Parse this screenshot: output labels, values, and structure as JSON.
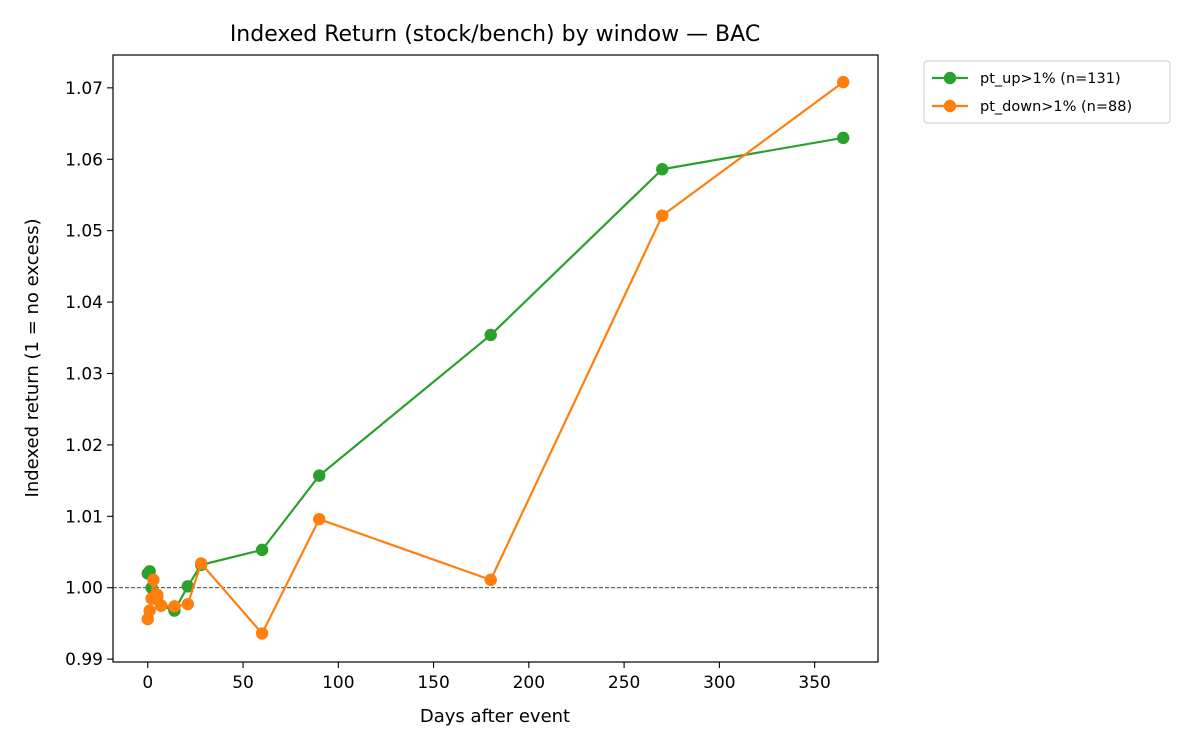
{
  "chart_data": {
    "type": "line",
    "title": "Indexed Return (stock/bench) by window — BAC",
    "xlabel": "Days after event",
    "ylabel": "Indexed return (1 = no excess)",
    "xlim": [
      -18.25,
      383.25
    ],
    "ylim": [
      0.9896,
      1.0746
    ],
    "xticks": [
      0,
      50,
      100,
      150,
      200,
      250,
      300,
      350
    ],
    "yticks": [
      0.99,
      1.0,
      1.01,
      1.02,
      1.03,
      1.04,
      1.05,
      1.06,
      1.07
    ],
    "ytick_labels": [
      "0.99",
      "1.00",
      "1.01",
      "1.02",
      "1.03",
      "1.04",
      "1.05",
      "1.06",
      "1.07"
    ],
    "reference_line": {
      "y": 1.0,
      "style": "dashed",
      "color": "#000000"
    },
    "grid": false,
    "legend_position": "outside-top-right",
    "series": [
      {
        "name": "pt_up>1% (n=131)",
        "color": "#2ca02c",
        "x": [
          0,
          1,
          2,
          3,
          5,
          7,
          14,
          21,
          28,
          60,
          90,
          180,
          270,
          365
        ],
        "y": [
          1.002,
          1.0023,
          1.0,
          0.9985,
          0.9988,
          0.9975,
          0.9968,
          1.0002,
          1.0032,
          1.0053,
          1.0157,
          1.0354,
          1.0586,
          1.063
        ]
      },
      {
        "name": "pt_down>1% (n=88)",
        "color": "#ff7f0e",
        "x": [
          0,
          1,
          2,
          3,
          5,
          7,
          14,
          21,
          28,
          60,
          90,
          180,
          270,
          365
        ],
        "y": [
          0.9956,
          0.9968,
          0.9985,
          1.0011,
          0.999,
          0.9975,
          0.9974,
          0.9977,
          1.0034,
          0.9936,
          1.0096,
          1.0011,
          1.0521,
          1.0708
        ]
      }
    ]
  }
}
